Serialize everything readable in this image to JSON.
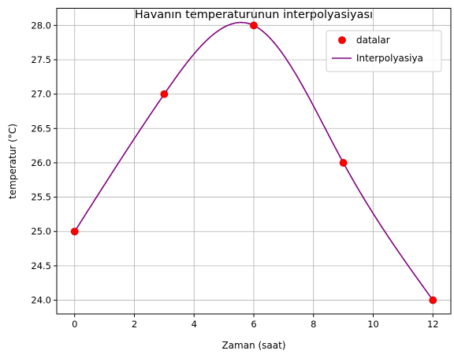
{
  "chart_data": {
    "type": "line",
    "title": "Havanın temperaturunun interpolyasiyası",
    "xlabel": "Zaman (saat)",
    "ylabel": "temperatur (°C)",
    "xlim": [
      -0.6,
      12.6
    ],
    "ylim": [
      23.8,
      28.25
    ],
    "x_ticks": [
      0,
      2,
      4,
      6,
      8,
      10,
      12
    ],
    "y_ticks": [
      24.0,
      24.5,
      25.0,
      25.5,
      26.0,
      26.5,
      27.0,
      27.5,
      28.0
    ],
    "grid": true,
    "legend_position": "top-right",
    "series": [
      {
        "name": "datalar",
        "kind": "scatter",
        "color": "#ff0000",
        "edge_color": "#d40000",
        "x": [
          0,
          3,
          6,
          9,
          12
        ],
        "y": [
          25,
          27,
          28,
          26,
          24
        ]
      },
      {
        "name": "Interpolyasiya",
        "kind": "line",
        "color": "#800080",
        "spline": "cubic-natural",
        "x": [
          0,
          3,
          6,
          9,
          12
        ],
        "y": [
          25,
          27,
          28,
          26,
          24
        ]
      }
    ]
  }
}
